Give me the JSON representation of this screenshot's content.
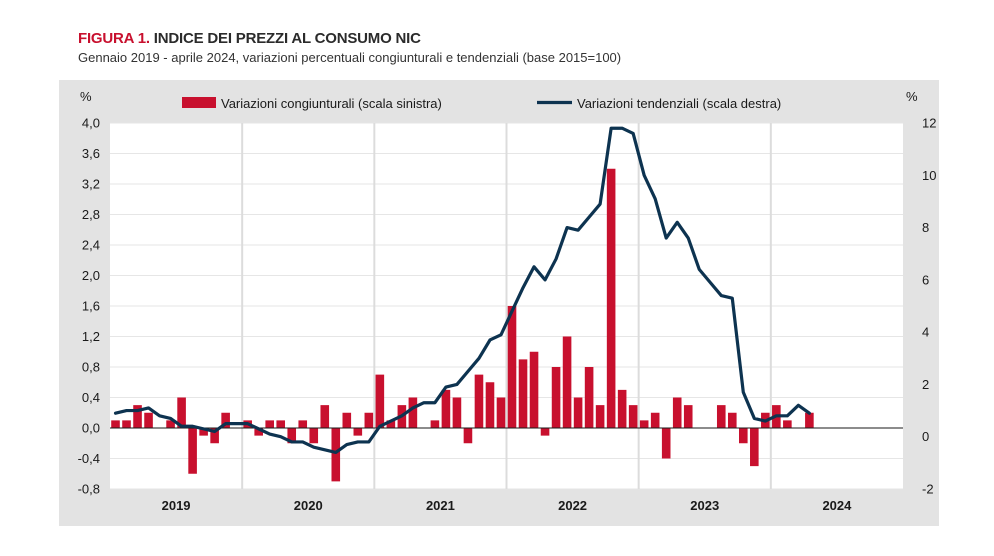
{
  "header": {
    "title_lead": "FIGURA 1.",
    "title_rest": "INDICE DEI PREZZI AL CONSUMO NIC",
    "subtitle": "Gennaio 2019 - aprile 2024, variazioni percentuali congiunturali e tendenziali (base 2015=100)"
  },
  "colors": {
    "bar": "#c8102e",
    "line": "#0d3350",
    "plot_bg": "#e3e3e3",
    "grid": "#ffffff"
  },
  "chart_data": {
    "type": "bar+line",
    "title": "INDICE DEI PREZZI AL CONSUMO NIC",
    "left_axis": {
      "unit": "%",
      "ylim": [
        -0.8,
        4.0
      ],
      "ticks": [
        "4,0",
        "3,6",
        "3,2",
        "2,8",
        "2,4",
        "2,0",
        "1,6",
        "1,2",
        "0,8",
        "0,4",
        "0,0",
        "-0,4",
        "-0,8"
      ]
    },
    "right_axis": {
      "unit": "%",
      "ylim": [
        -2,
        12
      ],
      "ticks": [
        "12",
        "10",
        "8",
        "6",
        "4",
        "2",
        "0",
        "-2"
      ]
    },
    "years": [
      "2019",
      "2020",
      "2021",
      "2022",
      "2023",
      "2024"
    ],
    "legend": {
      "bars": "Variazioni congiunturali (scala sinistra)",
      "line": "Variazioni tendenziali (scala destra)"
    },
    "series": [
      {
        "name": "Variazioni congiunturali (scala sinistra)",
        "type": "bar",
        "axis": "left",
        "values": [
          0.1,
          0.1,
          0.3,
          0.2,
          0.0,
          0.1,
          0.4,
          -0.6,
          -0.1,
          -0.2,
          0.2,
          0.0,
          0.1,
          -0.1,
          0.1,
          0.1,
          -0.2,
          0.1,
          -0.2,
          0.3,
          -0.7,
          0.2,
          -0.1,
          0.2,
          0.7,
          0.1,
          0.3,
          0.4,
          0.0,
          0.1,
          0.5,
          0.4,
          -0.2,
          0.7,
          0.6,
          0.4,
          1.6,
          0.9,
          1.0,
          -0.1,
          0.8,
          1.2,
          0.4,
          0.8,
          0.3,
          3.4,
          0.5,
          0.3,
          0.1,
          0.2,
          -0.4,
          0.4,
          0.3,
          0.0,
          0.0,
          0.3,
          0.2,
          -0.2,
          -0.5,
          0.2,
          0.3,
          0.1,
          0.0,
          0.2
        ]
      },
      {
        "name": "Variazioni tendenziali (scala destra)",
        "type": "line",
        "axis": "right",
        "values": [
          0.9,
          1.0,
          1.0,
          1.1,
          0.8,
          0.7,
          0.4,
          0.4,
          0.3,
          0.2,
          0.5,
          0.5,
          0.5,
          0.3,
          0.1,
          0.0,
          -0.2,
          -0.2,
          -0.4,
          -0.5,
          -0.6,
          -0.3,
          -0.2,
          -0.2,
          0.4,
          0.6,
          0.8,
          1.1,
          1.3,
          1.3,
          1.9,
          2.0,
          2.5,
          3.0,
          3.7,
          3.9,
          4.8,
          5.7,
          6.5,
          6.0,
          6.8,
          8.0,
          7.9,
          8.4,
          8.9,
          11.8,
          11.8,
          11.6,
          10.0,
          9.1,
          7.6,
          8.2,
          7.6,
          6.4,
          5.9,
          5.4,
          5.3,
          1.7,
          0.7,
          0.6,
          0.8,
          0.8,
          1.2,
          0.9
        ]
      }
    ]
  }
}
